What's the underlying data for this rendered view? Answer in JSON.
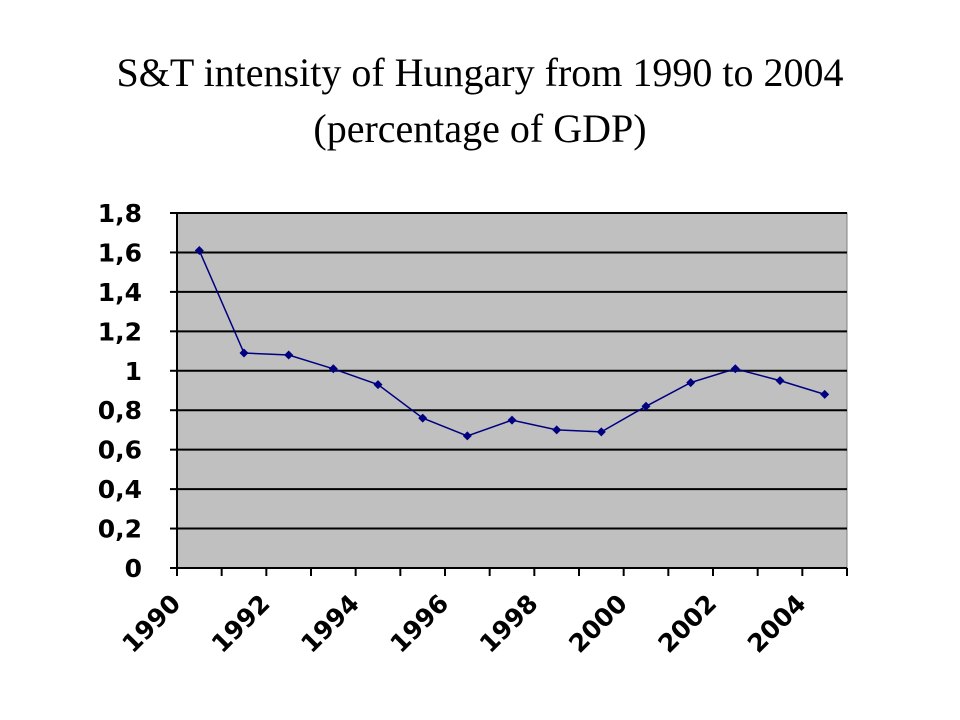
{
  "chart_data": {
    "type": "line",
    "title_line1": "S&T intensity of Hungary from 1990 to 2004",
    "title_line2": "(percentage of GDP)",
    "xlabel": "",
    "ylabel": "",
    "x": [
      1990,
      1991,
      1992,
      1993,
      1994,
      1995,
      1996,
      1997,
      1998,
      1999,
      2000,
      2001,
      2002,
      2003,
      2004
    ],
    "x_tick_labels": [
      "1990",
      "1992",
      "1994",
      "1996",
      "1998",
      "2000",
      "2002",
      "2004"
    ],
    "y_tick_labels": [
      "0",
      "0,2",
      "0,4",
      "0,6",
      "0,8",
      "1",
      "1,2",
      "1,4",
      "1,6",
      "1,8"
    ],
    "ylim": [
      0,
      1.8
    ],
    "series": [
      {
        "values": [
          1.61,
          1.09,
          1.08,
          1.01,
          0.93,
          0.76,
          0.67,
          0.75,
          0.7,
          0.69,
          0.82,
          0.94,
          1.01,
          0.95,
          0.88
        ]
      }
    ],
    "grid": true,
    "plot_background": "#c0c0c0",
    "line_color": "#000080",
    "marker": "diamond"
  }
}
